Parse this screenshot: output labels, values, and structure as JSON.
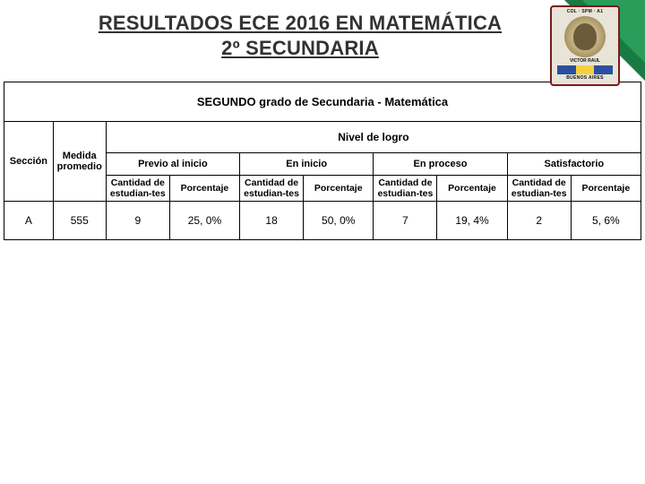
{
  "header": {
    "title_line1": "RESULTADOS ECE 2016 EN MATEMÁTICA",
    "title_line2": "2º SECUNDARIA"
  },
  "emblem": {
    "top": "COL · SPM · A1",
    "name": "VICTOR RAUL",
    "bottom": "BUENOS AIRES"
  },
  "colors": {
    "accent_dark": "#1a7a44",
    "accent_light": "#2a9d5a",
    "title_text": "#333333",
    "table_border": "#000000",
    "background": "#ffffff",
    "emblem_border": "#7a1b1b",
    "emblem_bg": "#e8e4d8",
    "flag_blue": "#2b4fa0",
    "flag_yellow": "#f4d03f"
  },
  "table": {
    "type": "table",
    "grade_header": "SEGUNDO grado de Secundaria - Matemática",
    "columns": {
      "seccion": "Sección",
      "medida": "Medida promedio",
      "nivel_header": "Nivel de logro"
    },
    "levels": [
      "Previo al inicio",
      "En inicio",
      "En proceso",
      "Satisfactorio"
    ],
    "sub": {
      "cantidad": "Cantidad de estudian-tes",
      "porcentaje": "Porcentaje"
    },
    "rows": [
      {
        "seccion": "A",
        "medida": "555",
        "previo": {
          "cant": "9",
          "pct": "25, 0%"
        },
        "inicio": {
          "cant": "18",
          "pct": "50, 0%"
        },
        "proceso": {
          "cant": "7",
          "pct": "19, 4%"
        },
        "satis": {
          "cant": "2",
          "pct": "5, 6%"
        }
      }
    ],
    "font_sizes": {
      "grade_header": 13,
      "nivel_header": 12,
      "group": 11,
      "sub": 10.5,
      "data": 12
    },
    "border_color": "#000000",
    "background_color": "#ffffff"
  }
}
